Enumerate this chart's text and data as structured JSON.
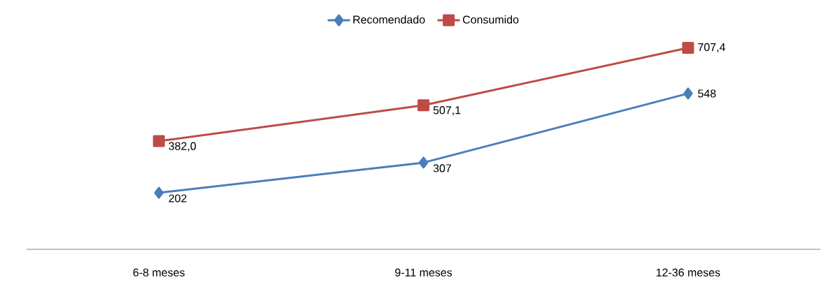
{
  "chart_data": {
    "type": "line",
    "categories": [
      "6-8 meses",
      "9-11 meses",
      "12-36 meses"
    ],
    "series": [
      {
        "name": "Recomendado",
        "color": "#4a7ebb",
        "marker": "diamond",
        "values": [
          202,
          307,
          548
        ],
        "value_labels": [
          "202",
          "307",
          "548"
        ]
      },
      {
        "name": "Consumido",
        "color": "#be4b48",
        "marker": "square",
        "values": [
          382.0,
          507.1,
          707.4
        ],
        "value_labels": [
          "382,0",
          "507,1",
          "707,4"
        ]
      }
    ],
    "tick_labels": "x",
    "legend": "top",
    "grid": false
  }
}
